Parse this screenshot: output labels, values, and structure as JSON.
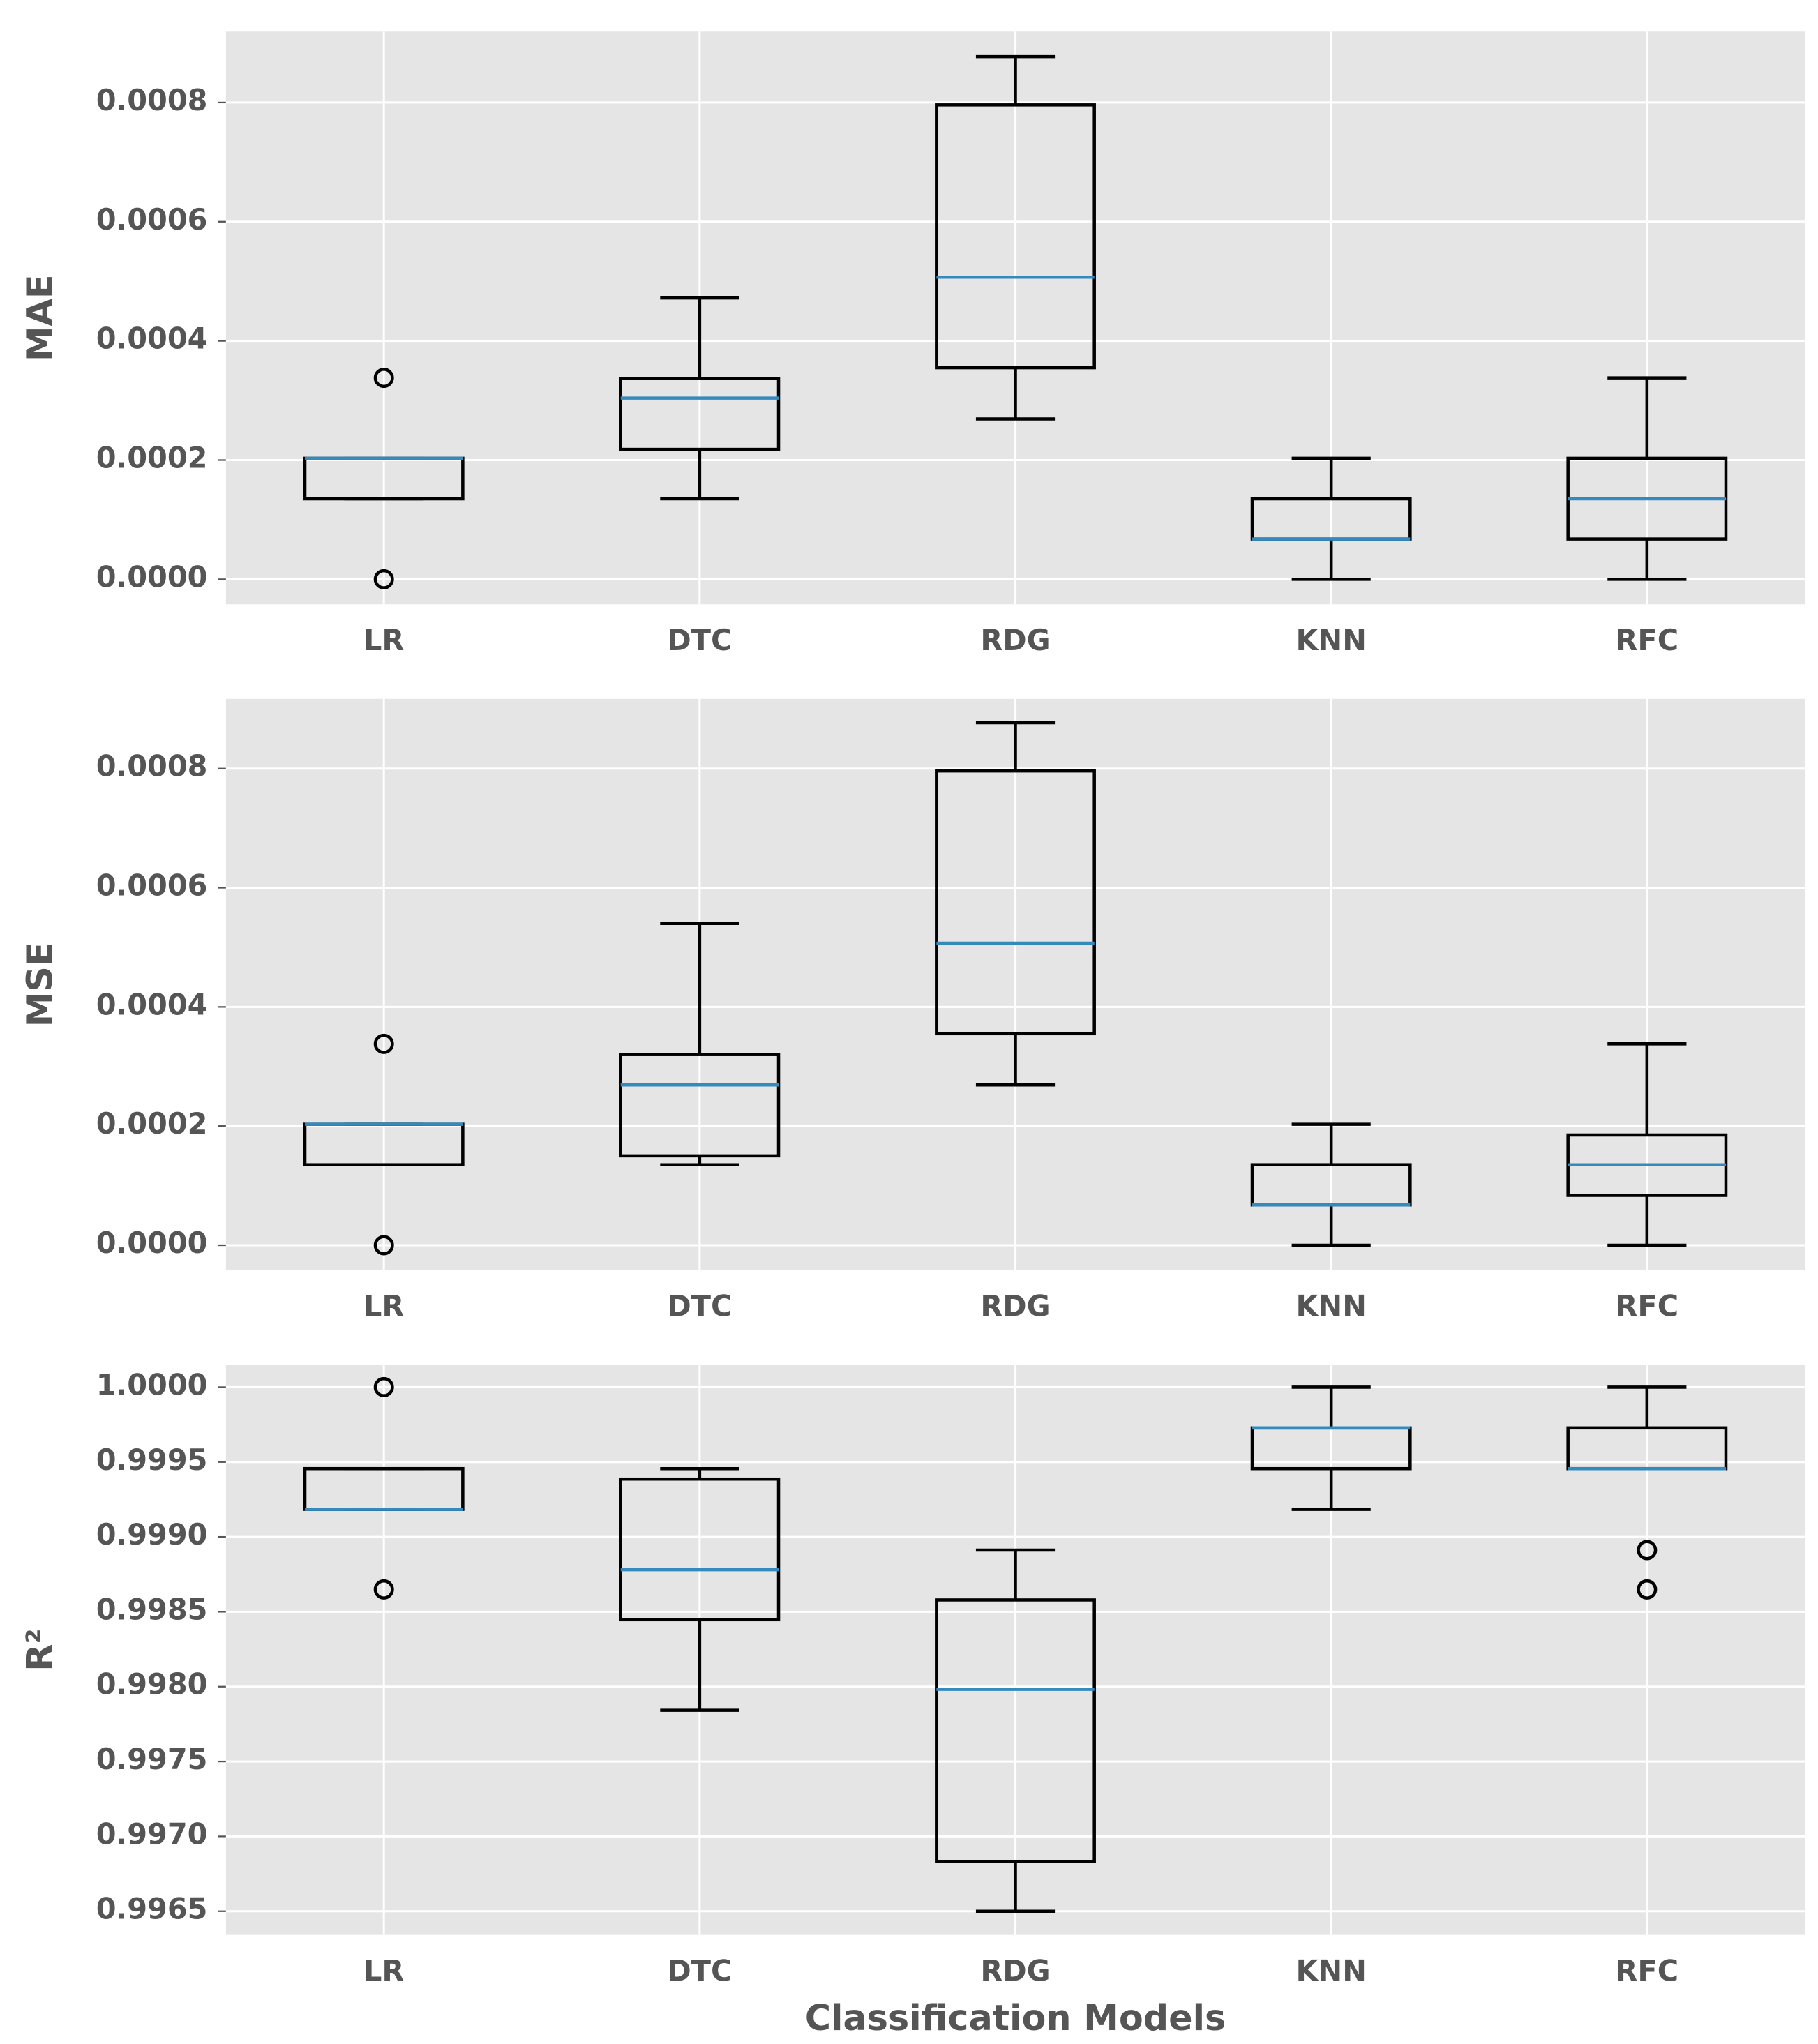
{
  "chart_data": [
    {
      "type": "box",
      "ylabel": "MAE",
      "grid": true,
      "box_color": "#000000",
      "median_color": "#348abd",
      "background": "#e5e5e5",
      "categories": [
        "LR",
        "DTC",
        "RDG",
        "KNN",
        "RFC"
      ],
      "boxes": [
        {
          "whislo": 0.000135,
          "q1": 0.000135,
          "med": 0.000203,
          "q3": 0.000203,
          "whishi": 0.000203,
          "fliers": [
            0.000338,
            0
          ]
        },
        {
          "whislo": 0.000135,
          "q1": 0.000218,
          "med": 0.000304,
          "q3": 0.000337,
          "whishi": 0.000472,
          "fliers": []
        },
        {
          "whislo": 0.000269,
          "q1": 0.000355,
          "med": 0.000507,
          "q3": 0.000796,
          "whishi": 0.000877,
          "fliers": []
        },
        {
          "whislo": 0,
          "q1": 6.76e-05,
          "med": 6.76e-05,
          "q3": 0.000135,
          "whishi": 0.000203,
          "fliers": []
        },
        {
          "whislo": 0,
          "q1": 6.76e-05,
          "med": 0.000135,
          "q3": 0.000203,
          "whishi": 0.000338,
          "fliers": []
        }
      ],
      "ylim": [
        -4.2e-05,
        0.000919
      ],
      "yticks": [
        {
          "value": 0,
          "label": "0.0000"
        },
        {
          "value": 0.0002,
          "label": "0.0002"
        },
        {
          "value": 0.0004,
          "label": "0.0004"
        },
        {
          "value": 0.0006,
          "label": "0.0006"
        },
        {
          "value": 0.0008,
          "label": "0.0008"
        }
      ]
    },
    {
      "type": "box",
      "ylabel": "MSE",
      "grid": true,
      "box_color": "#000000",
      "median_color": "#348abd",
      "background": "#e5e5e5",
      "categories": [
        "LR",
        "DTC",
        "RDG",
        "KNN",
        "RFC"
      ],
      "boxes": [
        {
          "whislo": 0.000135,
          "q1": 0.000135,
          "med": 0.000203,
          "q3": 0.000203,
          "whishi": 0.000203,
          "fliers": [
            0.000338,
            0
          ]
        },
        {
          "whislo": 0.000135,
          "q1": 0.00015,
          "med": 0.000269,
          "q3": 0.00032,
          "whishi": 0.00054,
          "fliers": []
        },
        {
          "whislo": 0.000269,
          "q1": 0.000355,
          "med": 0.000507,
          "q3": 0.000796,
          "whishi": 0.000877,
          "fliers": []
        },
        {
          "whislo": 0,
          "q1": 6.76e-05,
          "med": 6.76e-05,
          "q3": 0.000135,
          "whishi": 0.000203,
          "fliers": []
        },
        {
          "whislo": 0,
          "q1": 8.37e-05,
          "med": 0.000135,
          "q3": 0.000185,
          "whishi": 0.000338,
          "fliers": []
        }
      ],
      "ylim": [
        -4.2e-05,
        0.000917
      ],
      "yticks": [
        {
          "value": 0,
          "label": "0.0000"
        },
        {
          "value": 0.0002,
          "label": "0.0002"
        },
        {
          "value": 0.0004,
          "label": "0.0004"
        },
        {
          "value": 0.0006,
          "label": "0.0006"
        },
        {
          "value": 0.0008,
          "label": "0.0008"
        }
      ]
    },
    {
      "type": "box",
      "ylabel": "R²",
      "xlabel": "Classification Models",
      "grid": true,
      "box_color": "#000000",
      "median_color": "#348abd",
      "background": "#e5e5e5",
      "categories": [
        "LR",
        "DTC",
        "RDG",
        "KNN",
        "RFC"
      ],
      "boxes": [
        {
          "whislo": 0.999184,
          "q1": 0.999184,
          "med": 0.999184,
          "q3": 0.999456,
          "whishi": 0.999456,
          "fliers": [
            1.0,
            0.998649
          ]
        },
        {
          "whislo": 0.997842,
          "q1": 0.998447,
          "med": 0.998781,
          "q3": 0.999386,
          "whishi": 0.999456,
          "fliers": []
        },
        {
          "whislo": 0.9965,
          "q1": 0.996833,
          "med": 0.997982,
          "q3": 0.998579,
          "whishi": 0.998912,
          "fliers": []
        },
        {
          "whislo": 0.999184,
          "q1": 0.999456,
          "med": 0.999728,
          "q3": 0.999728,
          "whishi": 1.0,
          "fliers": []
        },
        {
          "whislo": 0.999456,
          "q1": 0.999456,
          "med": 0.999456,
          "q3": 0.999728,
          "whishi": 1.0,
          "fliers": [
            0.998912,
            0.998649
          ]
        }
      ],
      "ylim": [
        0.996342,
        1.000149
      ],
      "yticks": [
        {
          "value": 0.9965,
          "label": "0.9965"
        },
        {
          "value": 0.997,
          "label": "0.9970"
        },
        {
          "value": 0.9975,
          "label": "0.9975"
        },
        {
          "value": 0.998,
          "label": "0.9980"
        },
        {
          "value": 0.9985,
          "label": "0.9985"
        },
        {
          "value": 0.999,
          "label": "0.9990"
        },
        {
          "value": 0.9995,
          "label": "0.9995"
        },
        {
          "value": 1.0,
          "label": "1.0000"
        }
      ]
    }
  ]
}
